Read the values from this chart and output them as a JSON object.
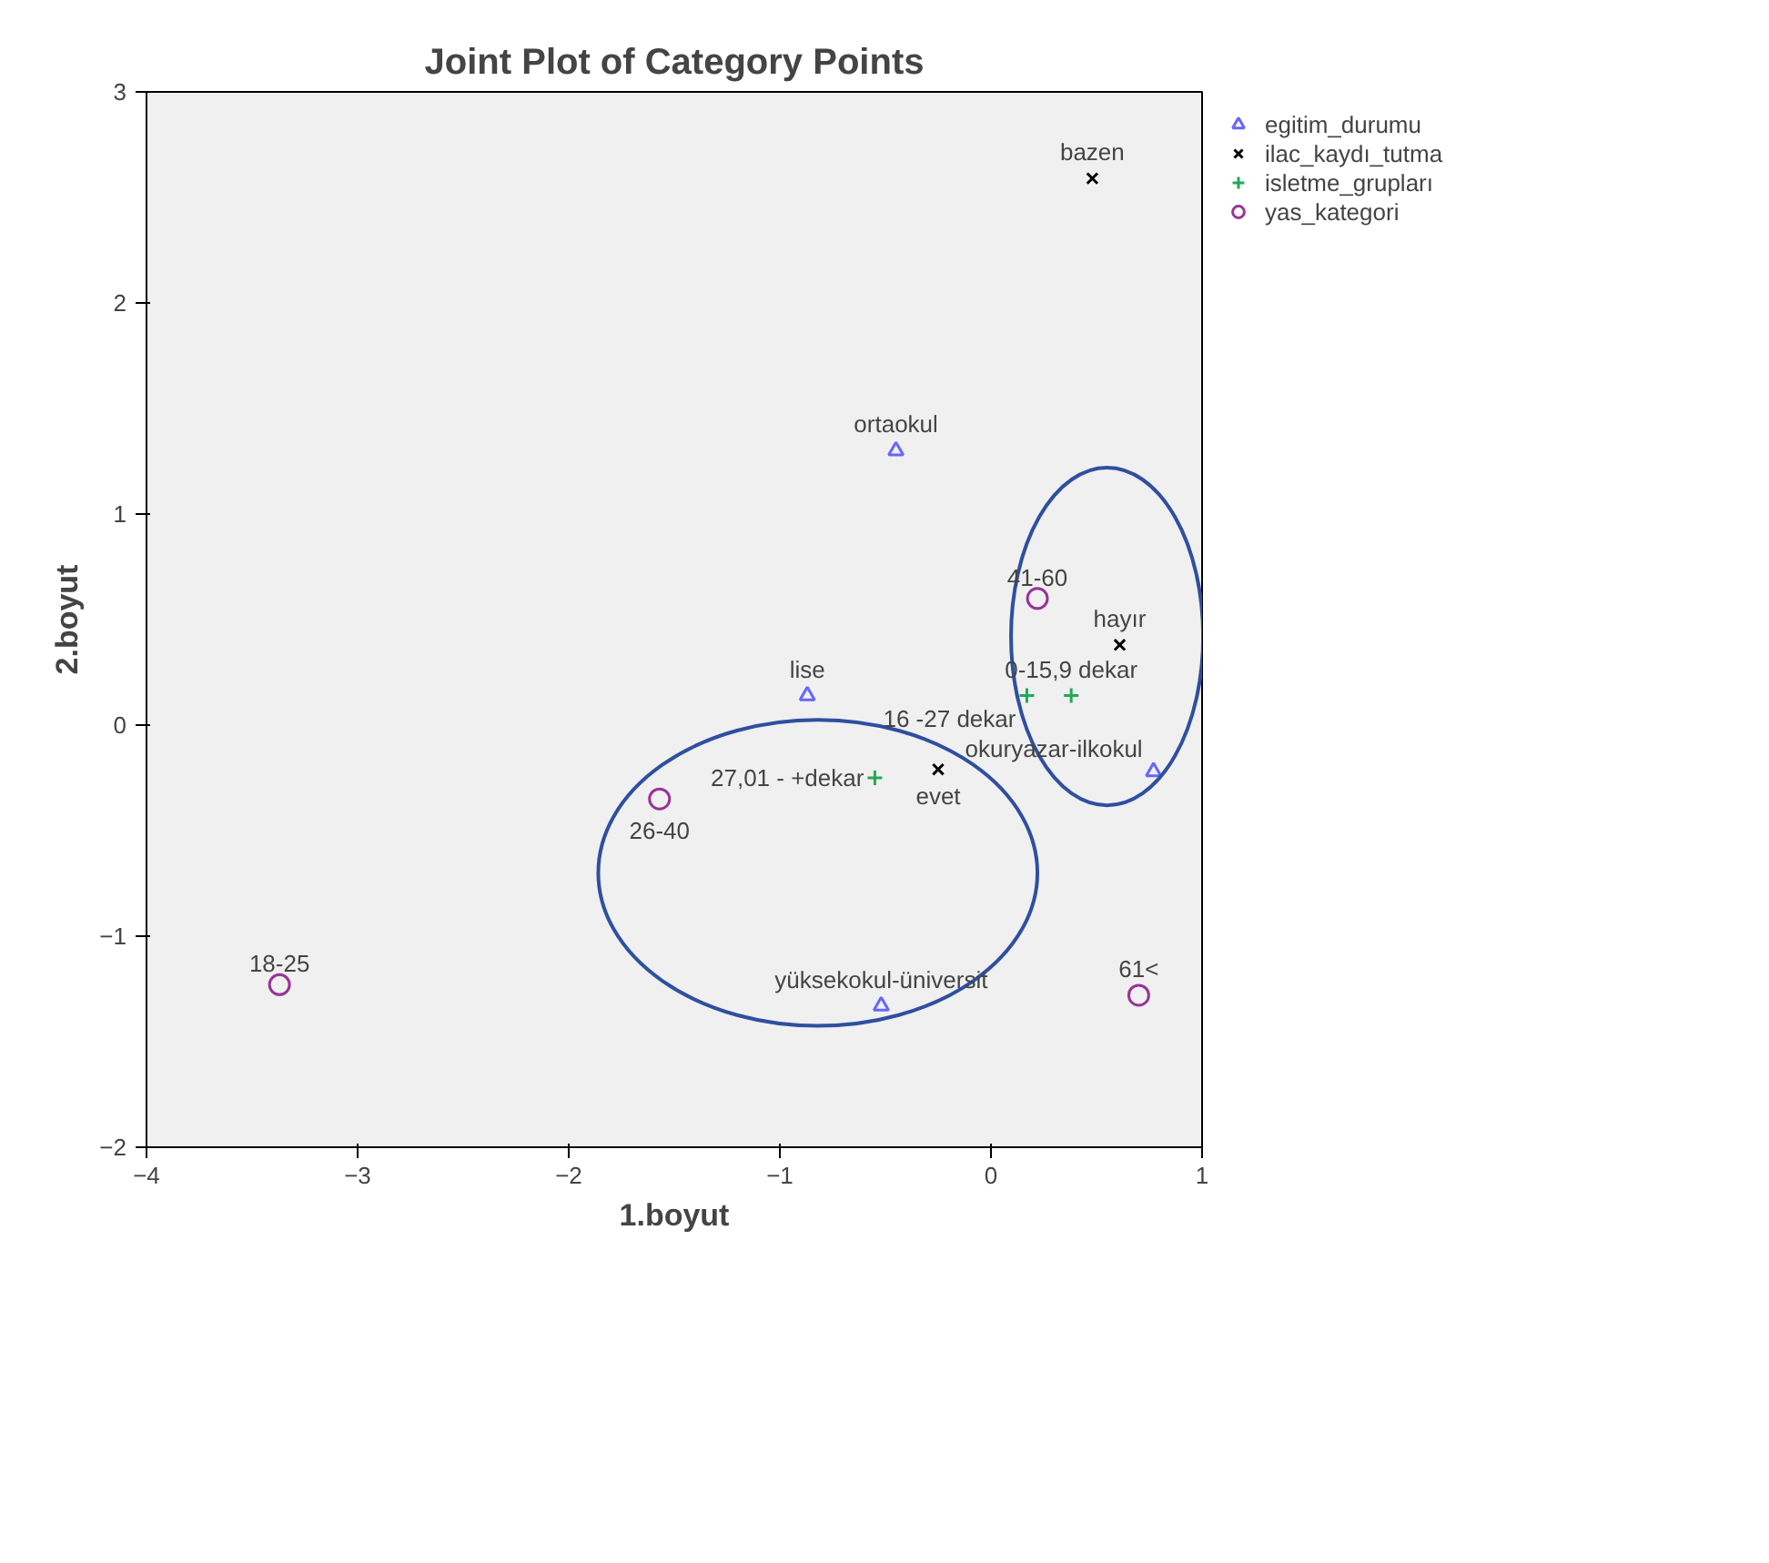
{
  "chart_data": {
    "type": "scatter",
    "title": "Joint Plot of Category Points",
    "xlabel": "1.boyut",
    "ylabel": "2.boyut",
    "xlim": [
      -4,
      1
    ],
    "ylim": [
      -2,
      3
    ],
    "xticks": [
      -4,
      -3,
      -2,
      -1,
      0,
      1
    ],
    "yticks": [
      -2,
      -1,
      0,
      1,
      2,
      3
    ],
    "grid": false,
    "legend": "top right",
    "series": [
      {
        "name": "egitim_durumu",
        "color": "#6666ff",
        "marker": "triangle",
        "x": [
          -0.45,
          -0.87,
          0.77,
          -0.52
        ],
        "values": [
          1.3,
          0.14,
          -0.22,
          -1.33
        ]
      },
      {
        "name": "ilac_kaydı_tutma",
        "color": "#000000",
        "marker": "cross",
        "x": [
          0.48,
          0.61,
          -0.25
        ],
        "values": [
          2.59,
          0.38,
          -0.21
        ]
      },
      {
        "name": "isletme_grupları",
        "color": "#22aa55",
        "marker": "plus",
        "x": [
          0.38,
          0.17,
          -0.55
        ],
        "values": [
          0.14,
          0.14,
          -0.25
        ]
      },
      {
        "name": "yas_kategori",
        "color": "#993399",
        "marker": "circle",
        "x": [
          0.22,
          -1.57,
          -3.37,
          0.7
        ],
        "values": [
          0.6,
          -0.35,
          -1.23,
          -1.28
        ]
      }
    ],
    "annotations": [
      {
        "text": "ortaokul",
        "x": -0.45,
        "y": 1.3
      },
      {
        "text": "lise",
        "x": -0.87,
        "y": 0.14
      },
      {
        "text": "okuryazar-ilkokul",
        "x": 0.77,
        "y": -0.22
      },
      {
        "text": "yüksekokul-üniversit",
        "x": -0.52,
        "y": -1.33
      },
      {
        "text": "bazen",
        "x": 0.48,
        "y": 2.59
      },
      {
        "text": "hayır",
        "x": 0.61,
        "y": 0.38
      },
      {
        "text": "evet",
        "x": -0.25,
        "y": -0.21
      },
      {
        "text": "0-15,9 dekar",
        "x": 0.38,
        "y": 0.14
      },
      {
        "text": "16 -27 dekar",
        "x": 0.17,
        "y": 0.14
      },
      {
        "text": "27,01 - +dekar",
        "x": -0.55,
        "y": -0.25
      },
      {
        "text": "41-60",
        "x": 0.22,
        "y": 0.6
      },
      {
        "text": "26-40",
        "x": -1.57,
        "y": -0.35
      },
      {
        "text": "18-25",
        "x": -3.37,
        "y": -1.23
      },
      {
        "text": "61<",
        "x": 0.7,
        "y": -1.28
      }
    ]
  }
}
